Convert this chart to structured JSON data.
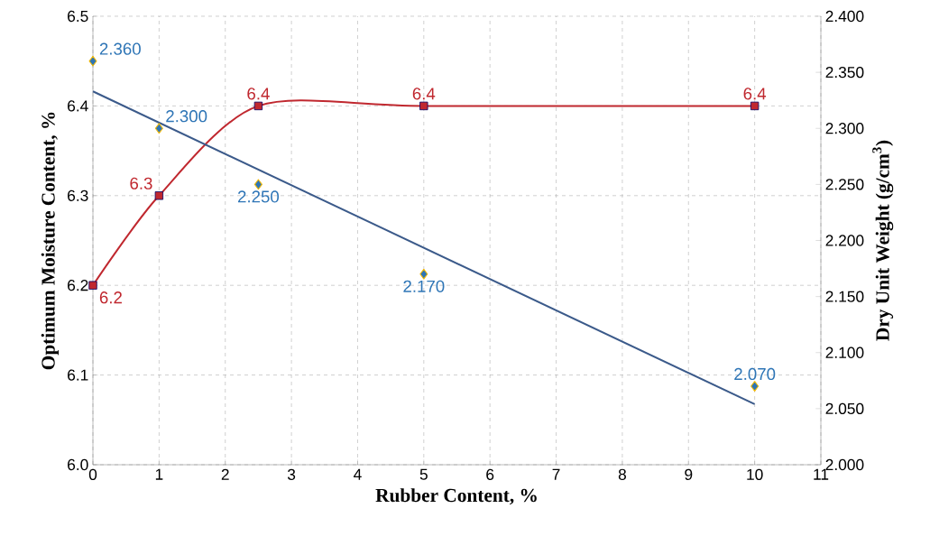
{
  "chart_data": {
    "type": "line",
    "xlabel": "Rubber Content, %",
    "ylabel": "Optimum Moisture Content, %",
    "y2label": "Dry Unit Weight (g/cm$^{3}$)",
    "xlim": [
      0,
      11
    ],
    "xticks": [
      0,
      1,
      2,
      3,
      4,
      5,
      6,
      7,
      8,
      9,
      10,
      11
    ],
    "ylim": [
      6.0,
      6.5
    ],
    "yticks": [
      {
        "value": 6.0,
        "label": "6.0"
      },
      {
        "value": 6.1,
        "label": "6.1"
      },
      {
        "value": 6.2,
        "label": "6.2"
      },
      {
        "value": 6.3,
        "label": "6.3"
      },
      {
        "value": 6.4,
        "label": "6.4"
      },
      {
        "value": 6.5,
        "label": "6.5"
      }
    ],
    "y2lim": [
      2.0,
      2.4
    ],
    "y2ticks": [
      {
        "value": 2.0,
        "label": "2.000"
      },
      {
        "value": 2.05,
        "label": "2.050"
      },
      {
        "value": 2.1,
        "label": "2.100"
      },
      {
        "value": 2.15,
        "label": "2.150"
      },
      {
        "value": 2.2,
        "label": "2.200"
      },
      {
        "value": 2.25,
        "label": "2.250"
      },
      {
        "value": 2.3,
        "label": "2.300"
      },
      {
        "value": 2.35,
        "label": "2.350"
      },
      {
        "value": 2.4,
        "label": "2.400"
      }
    ],
    "grid": true,
    "series": [
      {
        "axis": "y",
        "color": "#c0282f",
        "marker": "square",
        "x": [
          0,
          1,
          2.5,
          5,
          10
        ],
        "values": [
          6.2,
          6.3,
          6.4,
          6.4,
          6.4
        ],
        "value_labels": [
          "6.2",
          "6.3",
          "6.4",
          "6.4",
          "6.4"
        ]
      },
      {
        "type": "scatter",
        "axis": "y2",
        "color": "#2e75b6",
        "marker": "diamond",
        "x": [
          0,
          1,
          2.5,
          5,
          10
        ],
        "values": [
          2.36,
          2.3,
          2.25,
          2.17,
          2.07
        ],
        "value_labels": [
          "2.360",
          "2.300",
          "2.250",
          "2.170",
          "2.070"
        ]
      },
      {
        "axis": "y2",
        "color": "#3b5a8a",
        "marker": "none",
        "x": [
          0,
          10
        ],
        "values": [
          2.333,
          2.054
        ]
      }
    ]
  }
}
